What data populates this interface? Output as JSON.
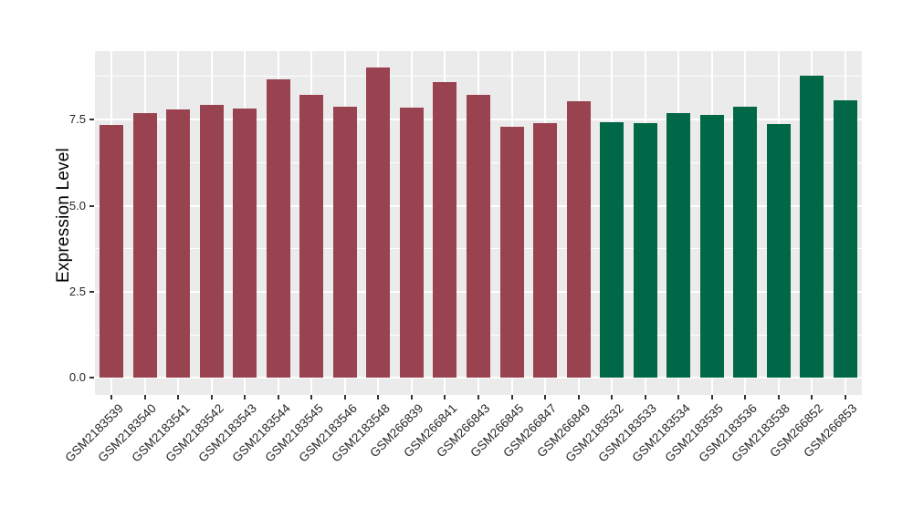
{
  "figure": {
    "background_color": "#FFFFFF"
  },
  "chart_data": {
    "type": "bar",
    "title": "",
    "xlabel": "",
    "ylabel": "Expression Level",
    "legend_position": "none",
    "grid": "on",
    "panel_background_color": "#EBEBEB",
    "gridline_color": "#FFFFFF",
    "axis_text_color": "#262626",
    "tick_mark_color": "#333333",
    "categories": [
      "GSM2183539",
      "GSM2183540",
      "GSM2183541",
      "GSM2183542",
      "GSM2183543",
      "GSM2183544",
      "GSM2183545",
      "GSM2183546",
      "GSM2183548",
      "GSM266839",
      "GSM266841",
      "GSM266843",
      "GSM266845",
      "GSM266847",
      "GSM266849",
      "GSM2183532",
      "GSM2183533",
      "GSM2183534",
      "GSM2183535",
      "GSM2183536",
      "GSM2183538",
      "GSM266852",
      "GSM266853"
    ],
    "values": [
      7.35,
      7.7,
      7.79,
      7.92,
      7.83,
      8.67,
      8.23,
      7.88,
      9.01,
      7.84,
      8.6,
      8.21,
      7.28,
      7.41,
      8.03,
      7.43,
      7.4,
      7.7,
      7.63,
      7.87,
      7.38,
      8.78,
      8.06
    ],
    "bar_groups": [
      "group1",
      "group1",
      "group1",
      "group1",
      "group1",
      "group1",
      "group1",
      "group1",
      "group1",
      "group1",
      "group1",
      "group1",
      "group1",
      "group1",
      "group1",
      "group2",
      "group2",
      "group2",
      "group2",
      "group2",
      "group2",
      "group2",
      "group2"
    ],
    "group_colors": {
      "group1": "#9A4350",
      "group2": "#006747"
    },
    "ytick_labels": [
      "0.0",
      "2.5",
      "5.0",
      "7.5"
    ],
    "ytick_values": [
      0,
      2.5,
      5.0,
      7.5
    ],
    "minor_tick_values": [
      1.25,
      3.75,
      6.25,
      8.75
    ],
    "ylim": [
      -0.49,
      9.49
    ]
  }
}
